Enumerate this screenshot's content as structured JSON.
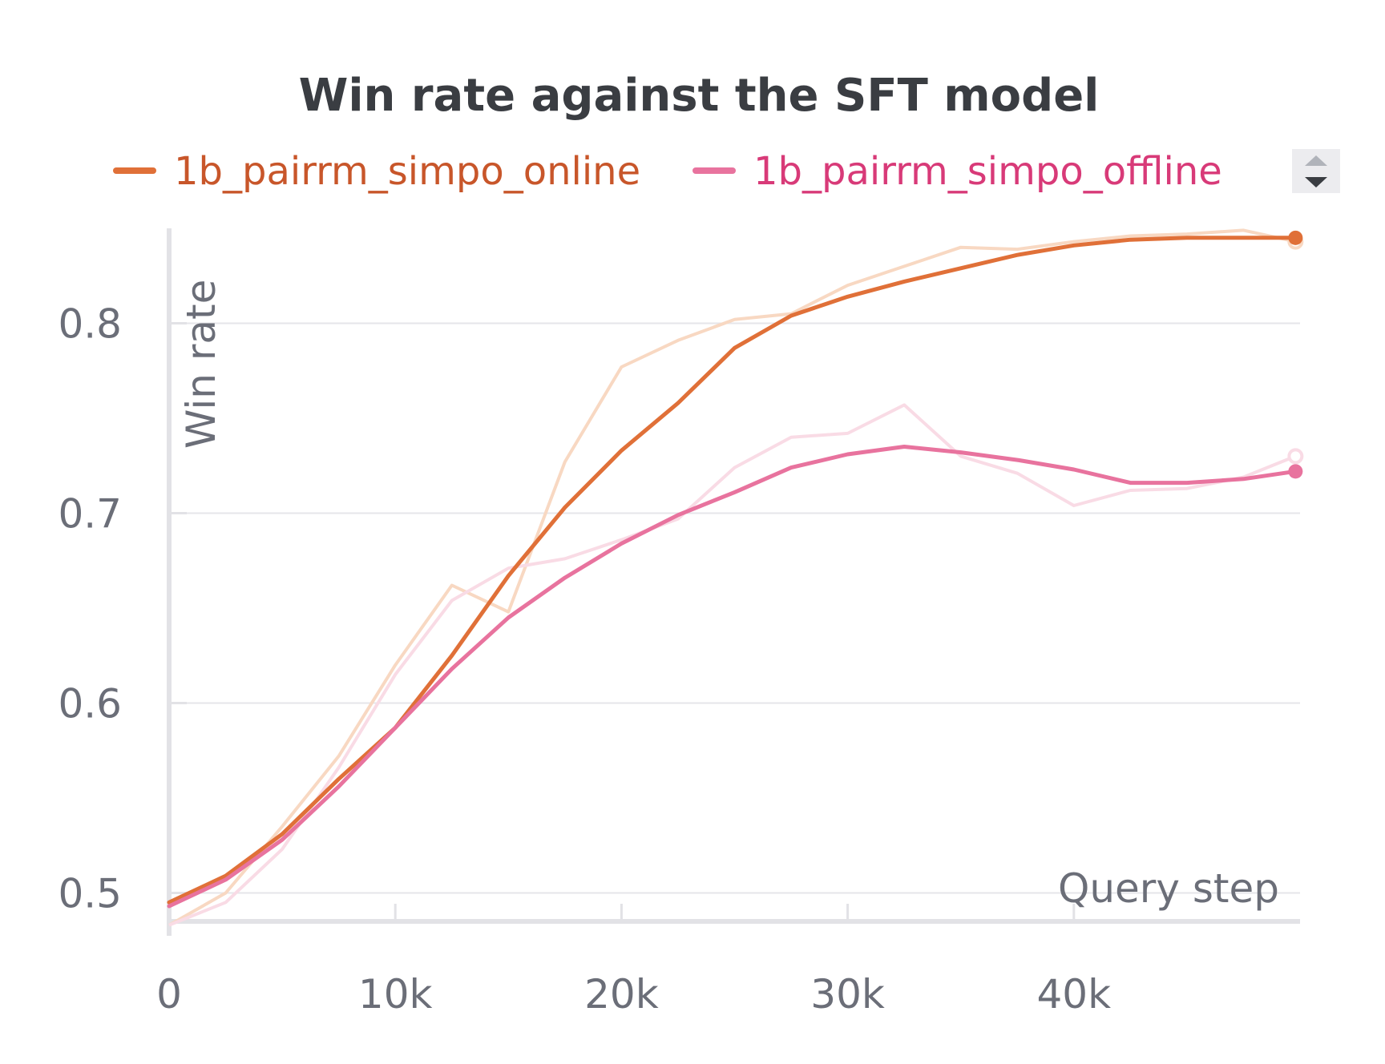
{
  "chart_data": {
    "type": "line",
    "title": "Win rate against the SFT model",
    "xlabel": "Query step",
    "ylabel": "Win rate",
    "xlim": [
      0,
      50000
    ],
    "ylim": [
      0.485,
      0.85
    ],
    "x_ticks": [
      0,
      10000,
      20000,
      30000,
      40000
    ],
    "x_tick_labels": [
      "0",
      "10k",
      "20k",
      "30k",
      "40k"
    ],
    "y_ticks": [
      0.5,
      0.6,
      0.7,
      0.8
    ],
    "y_tick_labels": [
      "0.5",
      "0.6",
      "0.7",
      "0.8"
    ],
    "grid": true,
    "legend_position": "top",
    "series": [
      {
        "name": "1b_pairrm_simpo_online",
        "color": "#e07038",
        "raw_color": "#f8d8c2",
        "text_color": "#c8562a",
        "x": [
          0,
          2500,
          5000,
          7500,
          10000,
          12500,
          15000,
          17500,
          20000,
          22500,
          25000,
          27500,
          30000,
          32500,
          35000,
          37500,
          40000,
          42500,
          45000,
          47500,
          49800
        ],
        "smoothed": [
          0.495,
          0.509,
          0.531,
          0.56,
          0.587,
          0.625,
          0.667,
          0.703,
          0.733,
          0.758,
          0.787,
          0.804,
          0.814,
          0.822,
          0.829,
          0.836,
          0.841,
          0.844,
          0.845,
          0.845,
          0.845
        ],
        "raw": [
          0.483,
          0.5,
          0.535,
          0.572,
          0.62,
          0.662,
          0.648,
          0.727,
          0.777,
          0.791,
          0.802,
          0.805,
          0.82,
          0.83,
          0.84,
          0.839,
          0.843,
          0.846,
          0.847,
          0.849,
          0.843
        ]
      },
      {
        "name": "1b_pairrm_simpo_offline",
        "color": "#e8739e",
        "raw_color": "#f9dbe5",
        "text_color": "#d83a78",
        "x": [
          0,
          2500,
          5000,
          7500,
          10000,
          12500,
          15000,
          17500,
          20000,
          22500,
          25000,
          27500,
          30000,
          32500,
          35000,
          37500,
          40000,
          42500,
          45000,
          47500,
          49800
        ],
        "smoothed": [
          0.493,
          0.507,
          0.528,
          0.556,
          0.587,
          0.618,
          0.645,
          0.666,
          0.684,
          0.699,
          0.711,
          0.724,
          0.731,
          0.735,
          0.732,
          0.728,
          0.723,
          0.716,
          0.716,
          0.718,
          0.722
        ],
        "raw": [
          0.483,
          0.495,
          0.523,
          0.566,
          0.615,
          0.654,
          0.671,
          0.676,
          0.686,
          0.697,
          0.724,
          0.74,
          0.742,
          0.757,
          0.73,
          0.721,
          0.704,
          0.712,
          0.713,
          0.719,
          0.73
        ]
      }
    ]
  }
}
